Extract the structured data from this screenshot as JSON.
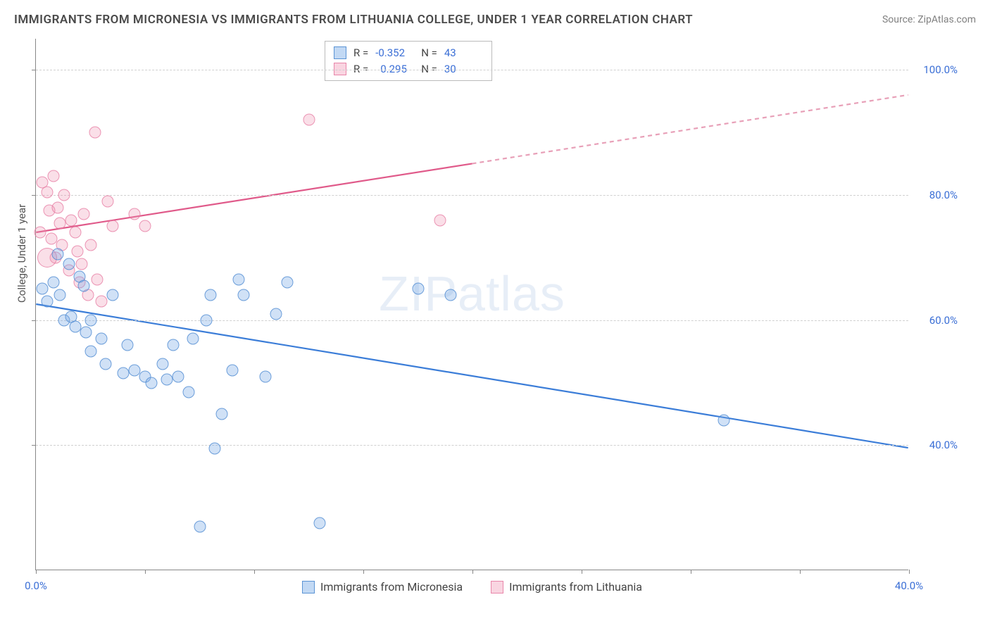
{
  "header": {
    "title": "IMMIGRANTS FROM MICRONESIA VS IMMIGRANTS FROM LITHUANIA COLLEGE, UNDER 1 YEAR CORRELATION CHART",
    "source": "Source: ZipAtlas.com"
  },
  "chart": {
    "type": "scatter",
    "watermark": "ZIPatlas",
    "ylabel": "College, Under 1 year",
    "xlim": [
      0,
      40
    ],
    "ylim": [
      20,
      105
    ],
    "xtick_positions": [
      0,
      5,
      10,
      15,
      20,
      25,
      30,
      35,
      40
    ],
    "xtick_labels": {
      "0": "0.0%",
      "40": "40.0%"
    },
    "ytick_positions": [
      40,
      60,
      80,
      100
    ],
    "ytick_labels": {
      "40": "40.0%",
      "60": "60.0%",
      "80": "80.0%",
      "100": "100.0%"
    },
    "colors": {
      "blue_fill": "rgba(120,170,230,0.35)",
      "blue_stroke": "#4f8cd2",
      "pink_fill": "rgba(240,150,180,0.3)",
      "pink_stroke": "#e678a0",
      "grid": "#d0d0d0",
      "axis": "#888888",
      "label": "#3b6fd6",
      "text": "#555555"
    },
    "legend_top": {
      "rows": [
        {
          "swatch": "blue",
          "r_label": "R =",
          "r_value": "-0.352",
          "n_label": "N =",
          "n_value": "43"
        },
        {
          "swatch": "pink",
          "r_label": "R =",
          "r_value": "0.295",
          "n_label": "N =",
          "n_value": "30"
        }
      ]
    },
    "legend_bottom": {
      "items": [
        {
          "swatch": "blue",
          "label": "Immigrants from Micronesia"
        },
        {
          "swatch": "pink",
          "label": "Immigrants from Lithuania"
        }
      ]
    },
    "series_blue": {
      "trend": {
        "x1": 0,
        "y1": 62.5,
        "x2": 40,
        "y2": 39.5,
        "dash_from_x": null
      },
      "points": [
        [
          0.3,
          65
        ],
        [
          0.5,
          63
        ],
        [
          0.8,
          66
        ],
        [
          1.0,
          70.5
        ],
        [
          1.1,
          64
        ],
        [
          1.3,
          60
        ],
        [
          1.5,
          69
        ],
        [
          1.6,
          60.5
        ],
        [
          1.8,
          59
        ],
        [
          2.0,
          67
        ],
        [
          2.2,
          65.5
        ],
        [
          2.3,
          58
        ],
        [
          2.5,
          55
        ],
        [
          2.5,
          60
        ],
        [
          3.0,
          57
        ],
        [
          3.2,
          53
        ],
        [
          3.5,
          64
        ],
        [
          4.0,
          51.5
        ],
        [
          4.2,
          56
        ],
        [
          4.5,
          52
        ],
        [
          5.0,
          51
        ],
        [
          5.3,
          50
        ],
        [
          5.8,
          53
        ],
        [
          6.0,
          50.5
        ],
        [
          6.3,
          56
        ],
        [
          6.5,
          51
        ],
        [
          7.0,
          48.5
        ],
        [
          7.2,
          57
        ],
        [
          7.5,
          27
        ],
        [
          7.8,
          60
        ],
        [
          8.0,
          64
        ],
        [
          8.2,
          39.5
        ],
        [
          8.5,
          45
        ],
        [
          9.0,
          52
        ],
        [
          9.3,
          66.5
        ],
        [
          9.5,
          64
        ],
        [
          10.5,
          51
        ],
        [
          11.0,
          61
        ],
        [
          11.5,
          66
        ],
        [
          13.0,
          27.5
        ],
        [
          17.5,
          65
        ],
        [
          19.0,
          64
        ],
        [
          31.5,
          44
        ]
      ]
    },
    "series_pink": {
      "trend": {
        "x1": 0,
        "y1": 74,
        "x2": 40,
        "y2": 96,
        "dash_from_x": 20
      },
      "points": [
        [
          0.2,
          74
        ],
        [
          0.3,
          82
        ],
        [
          0.5,
          80.5
        ],
        [
          0.6,
          77.5
        ],
        [
          0.7,
          73
        ],
        [
          0.8,
          83
        ],
        [
          0.9,
          70
        ],
        [
          1.0,
          78
        ],
        [
          1.1,
          75.5
        ],
        [
          1.2,
          72
        ],
        [
          1.3,
          80
        ],
        [
          1.5,
          68
        ],
        [
          1.6,
          76
        ],
        [
          1.8,
          74
        ],
        [
          1.9,
          71
        ],
        [
          2.0,
          66
        ],
        [
          2.1,
          69
        ],
        [
          2.2,
          77
        ],
        [
          2.4,
          64
        ],
        [
          2.5,
          72
        ],
        [
          2.7,
          90
        ],
        [
          2.8,
          66.5
        ],
        [
          3.0,
          63
        ],
        [
          3.3,
          79
        ],
        [
          3.5,
          75
        ],
        [
          4.5,
          77
        ],
        [
          5.0,
          75
        ],
        [
          12.5,
          92
        ],
        [
          18.5,
          76
        ]
      ],
      "big_point": [
        0.5,
        70
      ]
    }
  }
}
